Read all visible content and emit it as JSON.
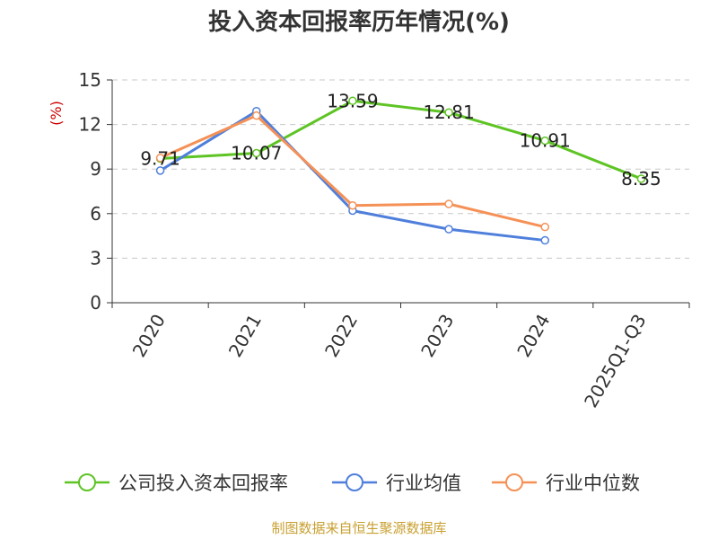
{
  "chart_data": {
    "type": "line",
    "title": "投入资本回报率历年情况(%)",
    "ylabel": "(%)",
    "categories": [
      "2020",
      "2021",
      "2022",
      "2023",
      "2024",
      "2025Q1-Q3"
    ],
    "ylim": [
      0,
      15
    ],
    "yticks": [
      0,
      3,
      6,
      9,
      12,
      15
    ],
    "grid": true,
    "legend_position": "bottom",
    "series": [
      {
        "name": "公司投入资本回报率",
        "color": "#5ec424",
        "values": [
          9.71,
          10.07,
          13.59,
          12.81,
          10.91,
          8.35
        ],
        "labels": [
          "9.71",
          "10.07",
          "13.59",
          "12.81",
          "10.91",
          "8.35"
        ]
      },
      {
        "name": "行业均值",
        "color": "#4f7fdb",
        "values": [
          8.9,
          12.9,
          6.2,
          4.95,
          4.2,
          null
        ]
      },
      {
        "name": "行业中位数",
        "color": "#f59157",
        "values": [
          9.75,
          12.6,
          6.55,
          6.65,
          5.1,
          null
        ]
      }
    ]
  },
  "source": "制图数据来自恒生聚源数据库"
}
